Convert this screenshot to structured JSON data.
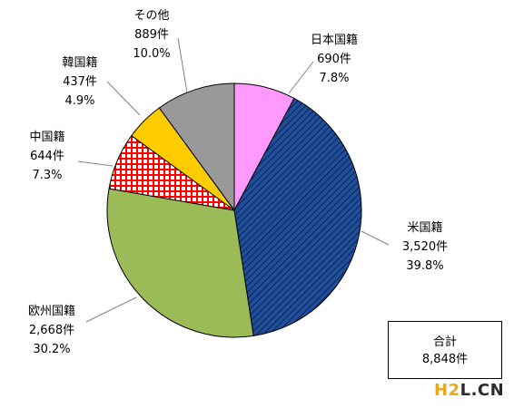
{
  "chart_data": {
    "type": "pie",
    "unit_suffix": "件",
    "slices": [
      {
        "label": "日本国籍",
        "count": 690,
        "count_text": "690件",
        "percent": 7.8,
        "percent_text": "7.8%",
        "color": "#ff99ff",
        "pattern": "solid"
      },
      {
        "label": "米国籍",
        "count": 3520,
        "count_text": "3,520件",
        "percent": 39.8,
        "percent_text": "39.8%",
        "color": "#1f4e9a",
        "pattern": "hatch"
      },
      {
        "label": "欧州国籍",
        "count": 2668,
        "count_text": "2,668件",
        "percent": 30.2,
        "percent_text": "30.2%",
        "color": "#9bbb59",
        "pattern": "solid"
      },
      {
        "label": "中国籍",
        "count": 644,
        "count_text": "644件",
        "percent": 7.3,
        "percent_text": "7.3%",
        "color": "#ff0000",
        "pattern": "grid"
      },
      {
        "label": "韓国籍",
        "count": 437,
        "count_text": "437件",
        "percent": 4.9,
        "percent_text": "4.9%",
        "color": "#ffcc00",
        "pattern": "solid"
      },
      {
        "label": "その他",
        "count": 889,
        "count_text": "889件",
        "percent": 10.0,
        "percent_text": "10.0%",
        "color": "#999999",
        "pattern": "solid"
      }
    ],
    "total": {
      "label": "合計",
      "value": 8848,
      "value_text": "8,848件"
    }
  },
  "watermark": {
    "part1": "H2",
    "part2": "L",
    "part3": ".CN"
  }
}
